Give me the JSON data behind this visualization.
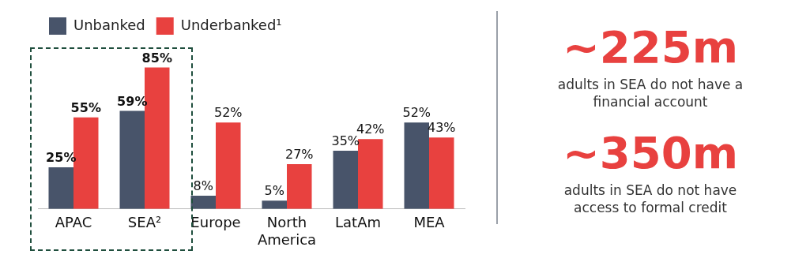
{
  "chart_data": {
    "type": "bar",
    "categories": [
      "APAC",
      "SEA²",
      "Europe",
      "North America",
      "LatAm",
      "MEA"
    ],
    "series": [
      {
        "name": "Unbanked",
        "color": "#48546a",
        "values": [
          25,
          59,
          8,
          5,
          35,
          52
        ],
        "value_labels": [
          "25%",
          "59%",
          "8%",
          "5%",
          "35%",
          "52%"
        ]
      },
      {
        "name": "Underbanked¹",
        "color": "#e8413f",
        "values": [
          55,
          85,
          52,
          27,
          42,
          43
        ],
        "value_labels": [
          "55%",
          "85%",
          "52%",
          "27%",
          "42%",
          "43%"
        ]
      }
    ],
    "legend": "top left",
    "grid": false,
    "annotations": [
      "~225m",
      "adults in SEA do not have a financial account",
      "~350m",
      "adults in SEA do not have access to formal credit"
    ]
  }
}
